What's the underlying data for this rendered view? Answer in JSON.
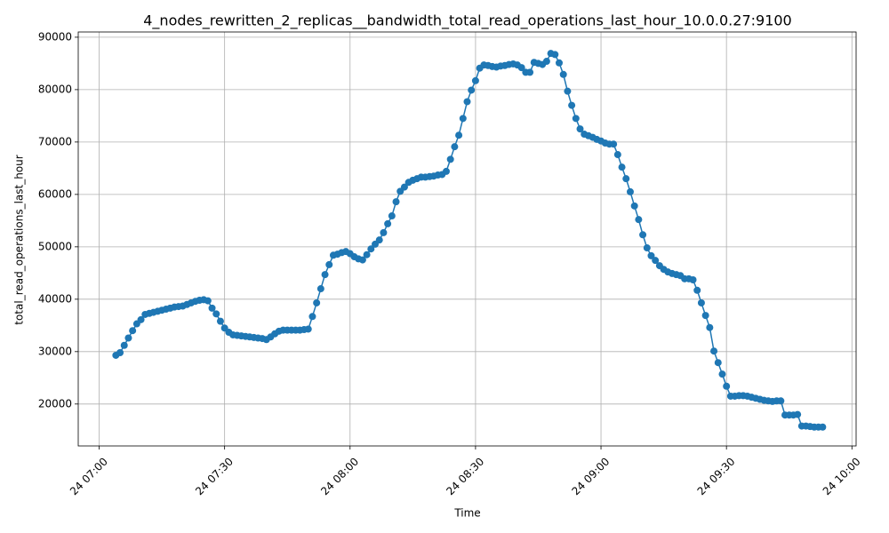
{
  "chart_data": {
    "type": "line",
    "title": "4_nodes_rewritten_2_replicas__bandwidth_total_read_operations_last_hour_10.0.0.27:9100",
    "x_label": "Time",
    "y_label": "total_read_operations_last_hour",
    "color": "#1f77b4",
    "grid": true,
    "xlim": [
      "24 06:55",
      "24 10:01"
    ],
    "xticks": [
      "24 07:00",
      "24 07:30",
      "24 08:00",
      "24 08:30",
      "24 09:00",
      "24 09:30",
      "24 10:00"
    ],
    "ylim": [
      12000,
      91000
    ],
    "yticks": [
      20000,
      30000,
      40000,
      50000,
      60000,
      70000,
      80000,
      90000
    ],
    "x": [
      "24 07:04",
      "24 07:05",
      "24 07:06",
      "24 07:07",
      "24 07:08",
      "24 07:09",
      "24 07:10",
      "24 07:11",
      "24 07:12",
      "24 07:13",
      "24 07:14",
      "24 07:15",
      "24 07:16",
      "24 07:17",
      "24 07:18",
      "24 07:19",
      "24 07:20",
      "24 07:21",
      "24 07:22",
      "24 07:23",
      "24 07:24",
      "24 07:25",
      "24 07:26",
      "24 07:27",
      "24 07:28",
      "24 07:29",
      "24 07:30",
      "24 07:31",
      "24 07:32",
      "24 07:33",
      "24 07:34",
      "24 07:35",
      "24 07:36",
      "24 07:37",
      "24 07:38",
      "24 07:39",
      "24 07:40",
      "24 07:41",
      "24 07:42",
      "24 07:43",
      "24 07:44",
      "24 07:45",
      "24 07:46",
      "24 07:47",
      "24 07:48",
      "24 07:49",
      "24 07:50",
      "24 07:51",
      "24 07:52",
      "24 07:53",
      "24 07:54",
      "24 07:55",
      "24 07:56",
      "24 07:57",
      "24 07:58",
      "24 07:59",
      "24 08:00",
      "24 08:01",
      "24 08:02",
      "24 08:03",
      "24 08:04",
      "24 08:05",
      "24 08:06",
      "24 08:07",
      "24 08:08",
      "24 08:09",
      "24 08:10",
      "24 08:11",
      "24 08:12",
      "24 08:13",
      "24 08:14",
      "24 08:15",
      "24 08:16",
      "24 08:17",
      "24 08:18",
      "24 08:19",
      "24 08:20",
      "24 08:21",
      "24 08:22",
      "24 08:23",
      "24 08:24",
      "24 08:25",
      "24 08:26",
      "24 08:27",
      "24 08:28",
      "24 08:29",
      "24 08:30",
      "24 08:31",
      "24 08:32",
      "24 08:33",
      "24 08:34",
      "24 08:35",
      "24 08:36",
      "24 08:37",
      "24 08:38",
      "24 08:39",
      "24 08:40",
      "24 08:41",
      "24 08:42",
      "24 08:43",
      "24 08:44",
      "24 08:45",
      "24 08:46",
      "24 08:47",
      "24 08:48",
      "24 08:49",
      "24 08:50",
      "24 08:51",
      "24 08:52",
      "24 08:53",
      "24 08:54",
      "24 08:55",
      "24 08:56",
      "24 08:57",
      "24 08:58",
      "24 08:59",
      "24 09:00",
      "24 09:01",
      "24 09:02",
      "24 09:03",
      "24 09:04",
      "24 09:05",
      "24 09:06",
      "24 09:07",
      "24 09:08",
      "24 09:09",
      "24 09:10",
      "24 09:11",
      "24 09:12",
      "24 09:13",
      "24 09:14",
      "24 09:15",
      "24 09:16",
      "24 09:17",
      "24 09:18",
      "24 09:19",
      "24 09:20",
      "24 09:21",
      "24 09:22",
      "24 09:23",
      "24 09:24",
      "24 09:25",
      "24 09:26",
      "24 09:27",
      "24 09:28",
      "24 09:29",
      "24 09:30",
      "24 09:31",
      "24 09:32",
      "24 09:33",
      "24 09:34",
      "24 09:35",
      "24 09:36",
      "24 09:37",
      "24 09:38",
      "24 09:39",
      "24 09:40",
      "24 09:41",
      "24 09:42",
      "24 09:43",
      "24 09:44",
      "24 09:45",
      "24 09:46",
      "24 09:47",
      "24 09:48",
      "24 09:49",
      "24 09:50",
      "24 09:51",
      "24 09:52",
      "24 09:53"
    ],
    "values": [
      29300,
      29800,
      31200,
      32600,
      34000,
      35300,
      36100,
      37100,
      37300,
      37500,
      37700,
      37900,
      38100,
      38300,
      38500,
      38600,
      38700,
      39000,
      39300,
      39600,
      39800,
      39900,
      39700,
      38300,
      37200,
      35800,
      34500,
      33700,
      33200,
      33100,
      33000,
      32900,
      32800,
      32700,
      32600,
      32500,
      32300,
      32800,
      33400,
      33900,
      34100,
      34100,
      34100,
      34100,
      34100,
      34200,
      34300,
      36700,
      39300,
      42000,
      44700,
      46600,
      48400,
      48600,
      48900,
      49100,
      48700,
      48100,
      47700,
      47500,
      48500,
      49600,
      50500,
      51300,
      52700,
      54400,
      55900,
      58600,
      60600,
      61400,
      62300,
      62700,
      63000,
      63300,
      63300,
      63400,
      63500,
      63700,
      63800,
      64400,
      66700,
      69100,
      71300,
      74500,
      77700,
      79900,
      81700,
      84100,
      84700,
      84600,
      84400,
      84300,
      84500,
      84600,
      84800,
      84900,
      84700,
      84200,
      83300,
      83300,
      85200,
      85000,
      84800,
      85400,
      86900,
      86700,
      85100,
      82900,
      79700,
      77000,
      74500,
      72500,
      71500,
      71200,
      70900,
      70500,
      70200,
      69800,
      69600,
      69600,
      67600,
      65200,
      63000,
      60500,
      57800,
      55200,
      52300,
      49800,
      48300,
      47400,
      46400,
      45700,
      45200,
      44900,
      44700,
      44500,
      43900,
      43900,
      43700,
      41700,
      39300,
      36900,
      34600,
      30100,
      27900,
      25700,
      23400,
      21500,
      21500,
      21600,
      21600,
      21500,
      21300,
      21100,
      20900,
      20700,
      20600,
      20500,
      20600,
      20600,
      17900,
      17900,
      17900,
      18000,
      15800,
      15800,
      15700,
      15600,
      15600,
      15600
    ]
  }
}
